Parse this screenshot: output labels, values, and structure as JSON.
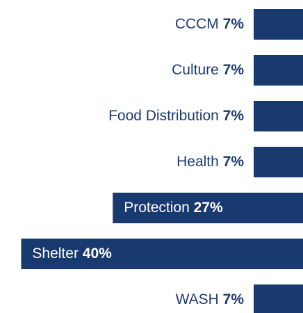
{
  "chart_data": {
    "type": "bar",
    "orientation": "horizontal",
    "categories": [
      "CCCM",
      "Culture",
      "Food Distribution",
      "Health",
      "Protection",
      "Shelter",
      "WASH"
    ],
    "values": [
      7,
      7,
      7,
      7,
      27,
      40,
      7
    ],
    "value_labels": [
      "7%",
      "7%",
      "7%",
      "7%",
      "27%",
      "40%",
      "7%"
    ],
    "color": "#193a6f",
    "label_color": "#1d3a6d",
    "inside_label_color": "#ffffff",
    "xlim": [
      0,
      43
    ]
  }
}
